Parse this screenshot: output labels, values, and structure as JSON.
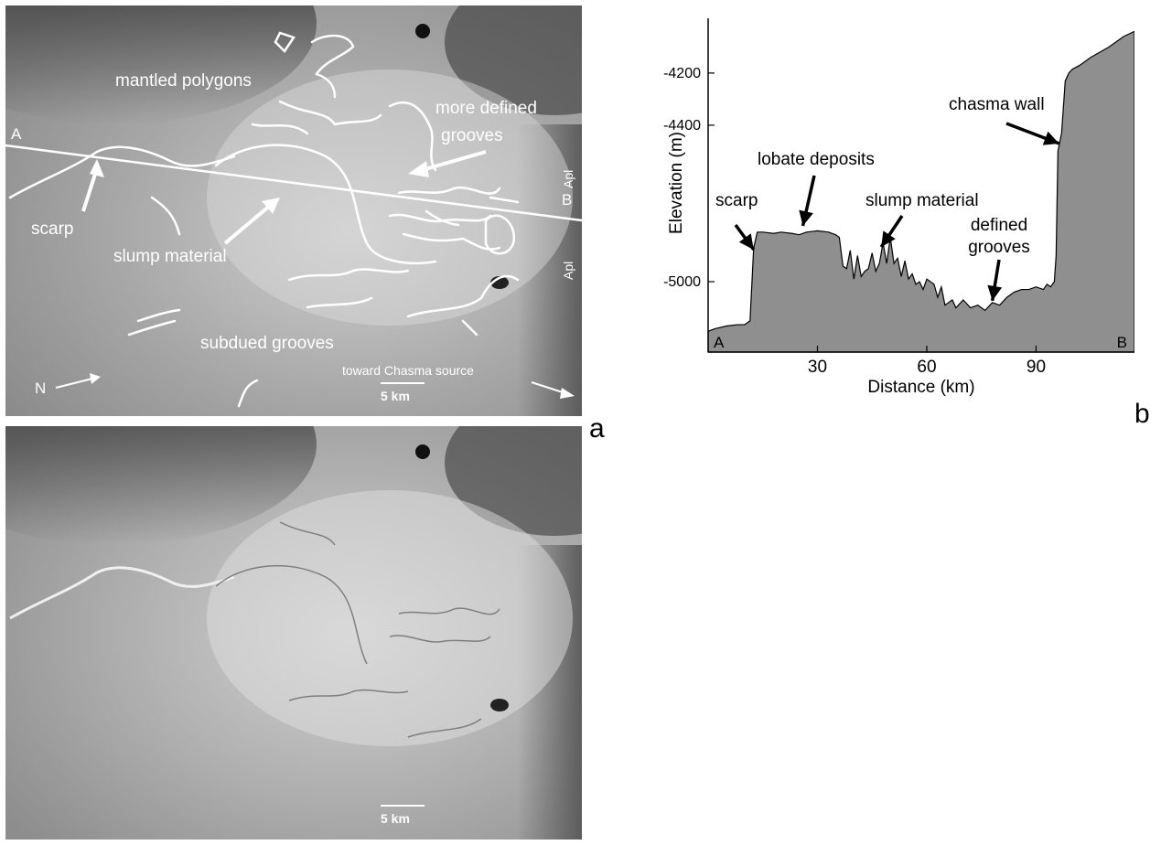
{
  "panel_a": {
    "letter": "a",
    "labels": {
      "mantled_polygons": "mantled polygons",
      "more_defined_grooves_1": "more defined",
      "more_defined_grooves_2": "grooves",
      "point_a": "A",
      "point_b": "B",
      "scarp": "scarp",
      "slump_material": "slump material",
      "subdued_grooves": "subdued grooves",
      "north": "N",
      "toward_chasma": "toward Chasma source",
      "apl_1": "Apl",
      "apl_2": "Apl",
      "scale": "5 km"
    }
  },
  "panel_a2": {
    "scale": "5 km"
  },
  "panel_b": {
    "letter": "b",
    "annotations": {
      "chasma_wall": "chasma wall",
      "lobate_deposits": "lobate deposits",
      "scarp": "scarp",
      "slump_material": "slump material",
      "defined_grooves_1": "defined",
      "defined_grooves_2": "grooves",
      "start": "A",
      "end": "B"
    }
  },
  "chart_data": {
    "type": "area",
    "title": "",
    "xlabel": "Distance (km)",
    "ylabel": "Elevation (m)",
    "xlim": [
      0,
      117
    ],
    "ylim": [
      -5270,
      -3990
    ],
    "xticks": [
      30,
      60,
      90
    ],
    "yticks": [
      -4200,
      -4400,
      -5000
    ],
    "grid": false,
    "series": [
      {
        "x": [
          0,
          2,
          5,
          8,
          10,
          11.5,
          12.5,
          13.5,
          15,
          18,
          20,
          23,
          25,
          27,
          30,
          33,
          35,
          36,
          37,
          38,
          39,
          40,
          41,
          42,
          43,
          44,
          45,
          46,
          47,
          48,
          49,
          50,
          51,
          52,
          53,
          54,
          55,
          56,
          57,
          58,
          59,
          60,
          62,
          63,
          64,
          65,
          66,
          67,
          68,
          70,
          72,
          74,
          76,
          78,
          80,
          82,
          84,
          86,
          88,
          90,
          92,
          93,
          94,
          95,
          95.5,
          96,
          97,
          98,
          99,
          100,
          102,
          105,
          110,
          114,
          117
        ],
        "y": [
          -5190,
          -5180,
          -5170,
          -5165,
          -5165,
          -5150,
          -4870,
          -4810,
          -4810,
          -4815,
          -4810,
          -4815,
          -4820,
          -4810,
          -4805,
          -4810,
          -4820,
          -4830,
          -4940,
          -4950,
          -4880,
          -4990,
          -4900,
          -4980,
          -4960,
          -4950,
          -4890,
          -4960,
          -4930,
          -4850,
          -4930,
          -4830,
          -4930,
          -4910,
          -4980,
          -4920,
          -4990,
          -4970,
          -5010,
          -5000,
          -5030,
          -4990,
          -5010,
          -5060,
          -5020,
          -5090,
          -5080,
          -5070,
          -5100,
          -5070,
          -5100,
          -5090,
          -5110,
          -5080,
          -5090,
          -5060,
          -5040,
          -5030,
          -5030,
          -5020,
          -5030,
          -5010,
          -5020,
          -5000,
          -4900,
          -4500,
          -4430,
          -4230,
          -4200,
          -4185,
          -4170,
          -4140,
          -4100,
          -4060,
          -4040
        ]
      }
    ]
  }
}
